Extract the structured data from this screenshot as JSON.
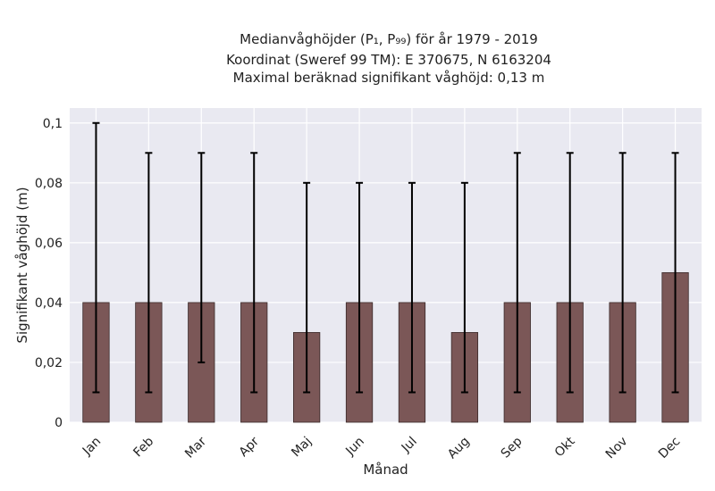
{
  "title_lines": [
    "Medianvåghöjder (P₁, P₉₉) för år 1979 - 2019",
    "Koordinat (Sweref 99 TM): E 370675, N 6163204",
    "Maximal beräknad signifikant våghöjd: 0,13 m"
  ],
  "chart_data": {
    "type": "bar",
    "xlabel": "Månad",
    "ylabel": "Signifikant våghöjd (m)",
    "ylim": [
      0,
      0.105
    ],
    "yticks": [
      0,
      0.02,
      0.04,
      0.06,
      0.08,
      0.1
    ],
    "ytick_labels": [
      "0",
      "0,02",
      "0,04",
      "0,06",
      "0,08",
      "0,1"
    ],
    "categories": [
      "Jan",
      "Feb",
      "Mar",
      "Apr",
      "Maj",
      "Jun",
      "Jul",
      "Aug",
      "Sep",
      "Okt",
      "Nov",
      "Dec"
    ],
    "series": [
      {
        "values": [
          0.04,
          0.04,
          0.04,
          0.04,
          0.03,
          0.04,
          0.04,
          0.03,
          0.04,
          0.04,
          0.04,
          0.05
        ],
        "p1": [
          0.01,
          0.01,
          0.02,
          0.01,
          0.01,
          0.01,
          0.01,
          0.01,
          0.01,
          0.01,
          0.01,
          0.01
        ],
        "p99": [
          0.1,
          0.09,
          0.09,
          0.09,
          0.08,
          0.08,
          0.08,
          0.08,
          0.09,
          0.09,
          0.09,
          0.09
        ]
      }
    ],
    "bar_color": "#7b5757",
    "error_color": "#000000",
    "plot_background": "#e9e9f1",
    "grid": true
  }
}
